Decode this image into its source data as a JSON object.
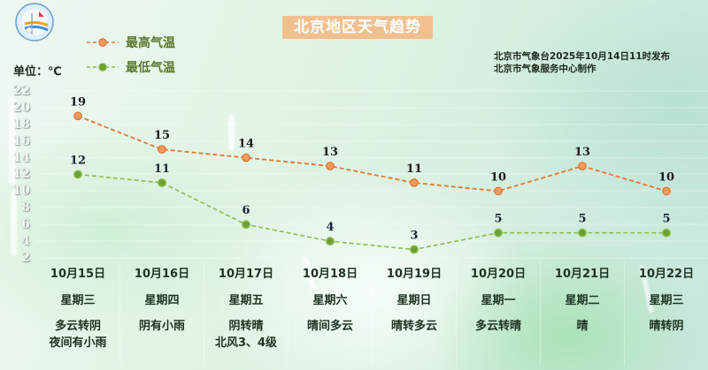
{
  "header": {
    "title": "北京地区天气趋势",
    "publish_line": "北京市气象台2025年10月14日11时发布",
    "producer_line": "北京市气象服务中心制作",
    "logo": "meteorological-service-logo"
  },
  "legend": {
    "high": {
      "label": "最高气温",
      "color": "#e8772e",
      "marker_fill": "#f39a5e"
    },
    "low": {
      "label": "最低气温",
      "color": "#8cbf4a",
      "marker_fill": "#6f9e35"
    }
  },
  "unit_label": "单位：℃",
  "y_axis": {
    "ticks": [
      "22",
      "20",
      "18",
      "16",
      "14",
      "12",
      "10",
      "8",
      "6",
      "4",
      "2"
    ]
  },
  "days": [
    {
      "date": "10月15日",
      "weekday": "星期三",
      "weather": [
        "多云转阴",
        "夜间有小雨"
      ],
      "high": "19",
      "low": "12"
    },
    {
      "date": "10月16日",
      "weekday": "星期四",
      "weather": [
        "阴有小雨"
      ],
      "high": "15",
      "low": "11"
    },
    {
      "date": "10月17日",
      "weekday": "星期五",
      "weather": [
        "阴转晴",
        "北风3、4级"
      ],
      "high": "14",
      "low": "6"
    },
    {
      "date": "10月18日",
      "weekday": "星期六",
      "weather": [
        "晴间多云"
      ],
      "high": "13",
      "low": "4"
    },
    {
      "date": "10月19日",
      "weekday": "星期日",
      "weather": [
        "晴转多云"
      ],
      "high": "11",
      "low": "3"
    },
    {
      "date": "10月20日",
      "weekday": "星期一",
      "weather": [
        "多云转晴"
      ],
      "high": "10",
      "low": "5"
    },
    {
      "date": "10月21日",
      "weekday": "星期二",
      "weather": [
        "晴"
      ],
      "high": "13",
      "low": "5"
    },
    {
      "date": "10月22日",
      "weekday": "星期三",
      "weather": [
        "晴转阴"
      ],
      "high": "10",
      "low": "5"
    }
  ],
  "chart_data": {
    "type": "line",
    "title": "北京地区天气趋势",
    "subtitle": "北京市气象台2025年10月14日11时发布",
    "categories": [
      "10月15日",
      "10月16日",
      "10月17日",
      "10月18日",
      "10月19日",
      "10月20日",
      "10月21日",
      "10月22日"
    ],
    "series": [
      {
        "name": "最高气温",
        "values": [
          19,
          15,
          14,
          13,
          11,
          10,
          13,
          10
        ],
        "color": "#e8772e",
        "style": "dashed"
      },
      {
        "name": "最低气温",
        "values": [
          12,
          11,
          6,
          4,
          3,
          5,
          5,
          5
        ],
        "color": "#8cbf4a",
        "style": "dashed"
      }
    ],
    "xlabel": "",
    "ylabel": "单位：℃",
    "ylim": [
      2,
      22
    ],
    "yticks": [
      2,
      4,
      6,
      8,
      10,
      12,
      14,
      16,
      18,
      20,
      22
    ],
    "grid": true,
    "legend_position": "top-left",
    "data_labels": true
  }
}
